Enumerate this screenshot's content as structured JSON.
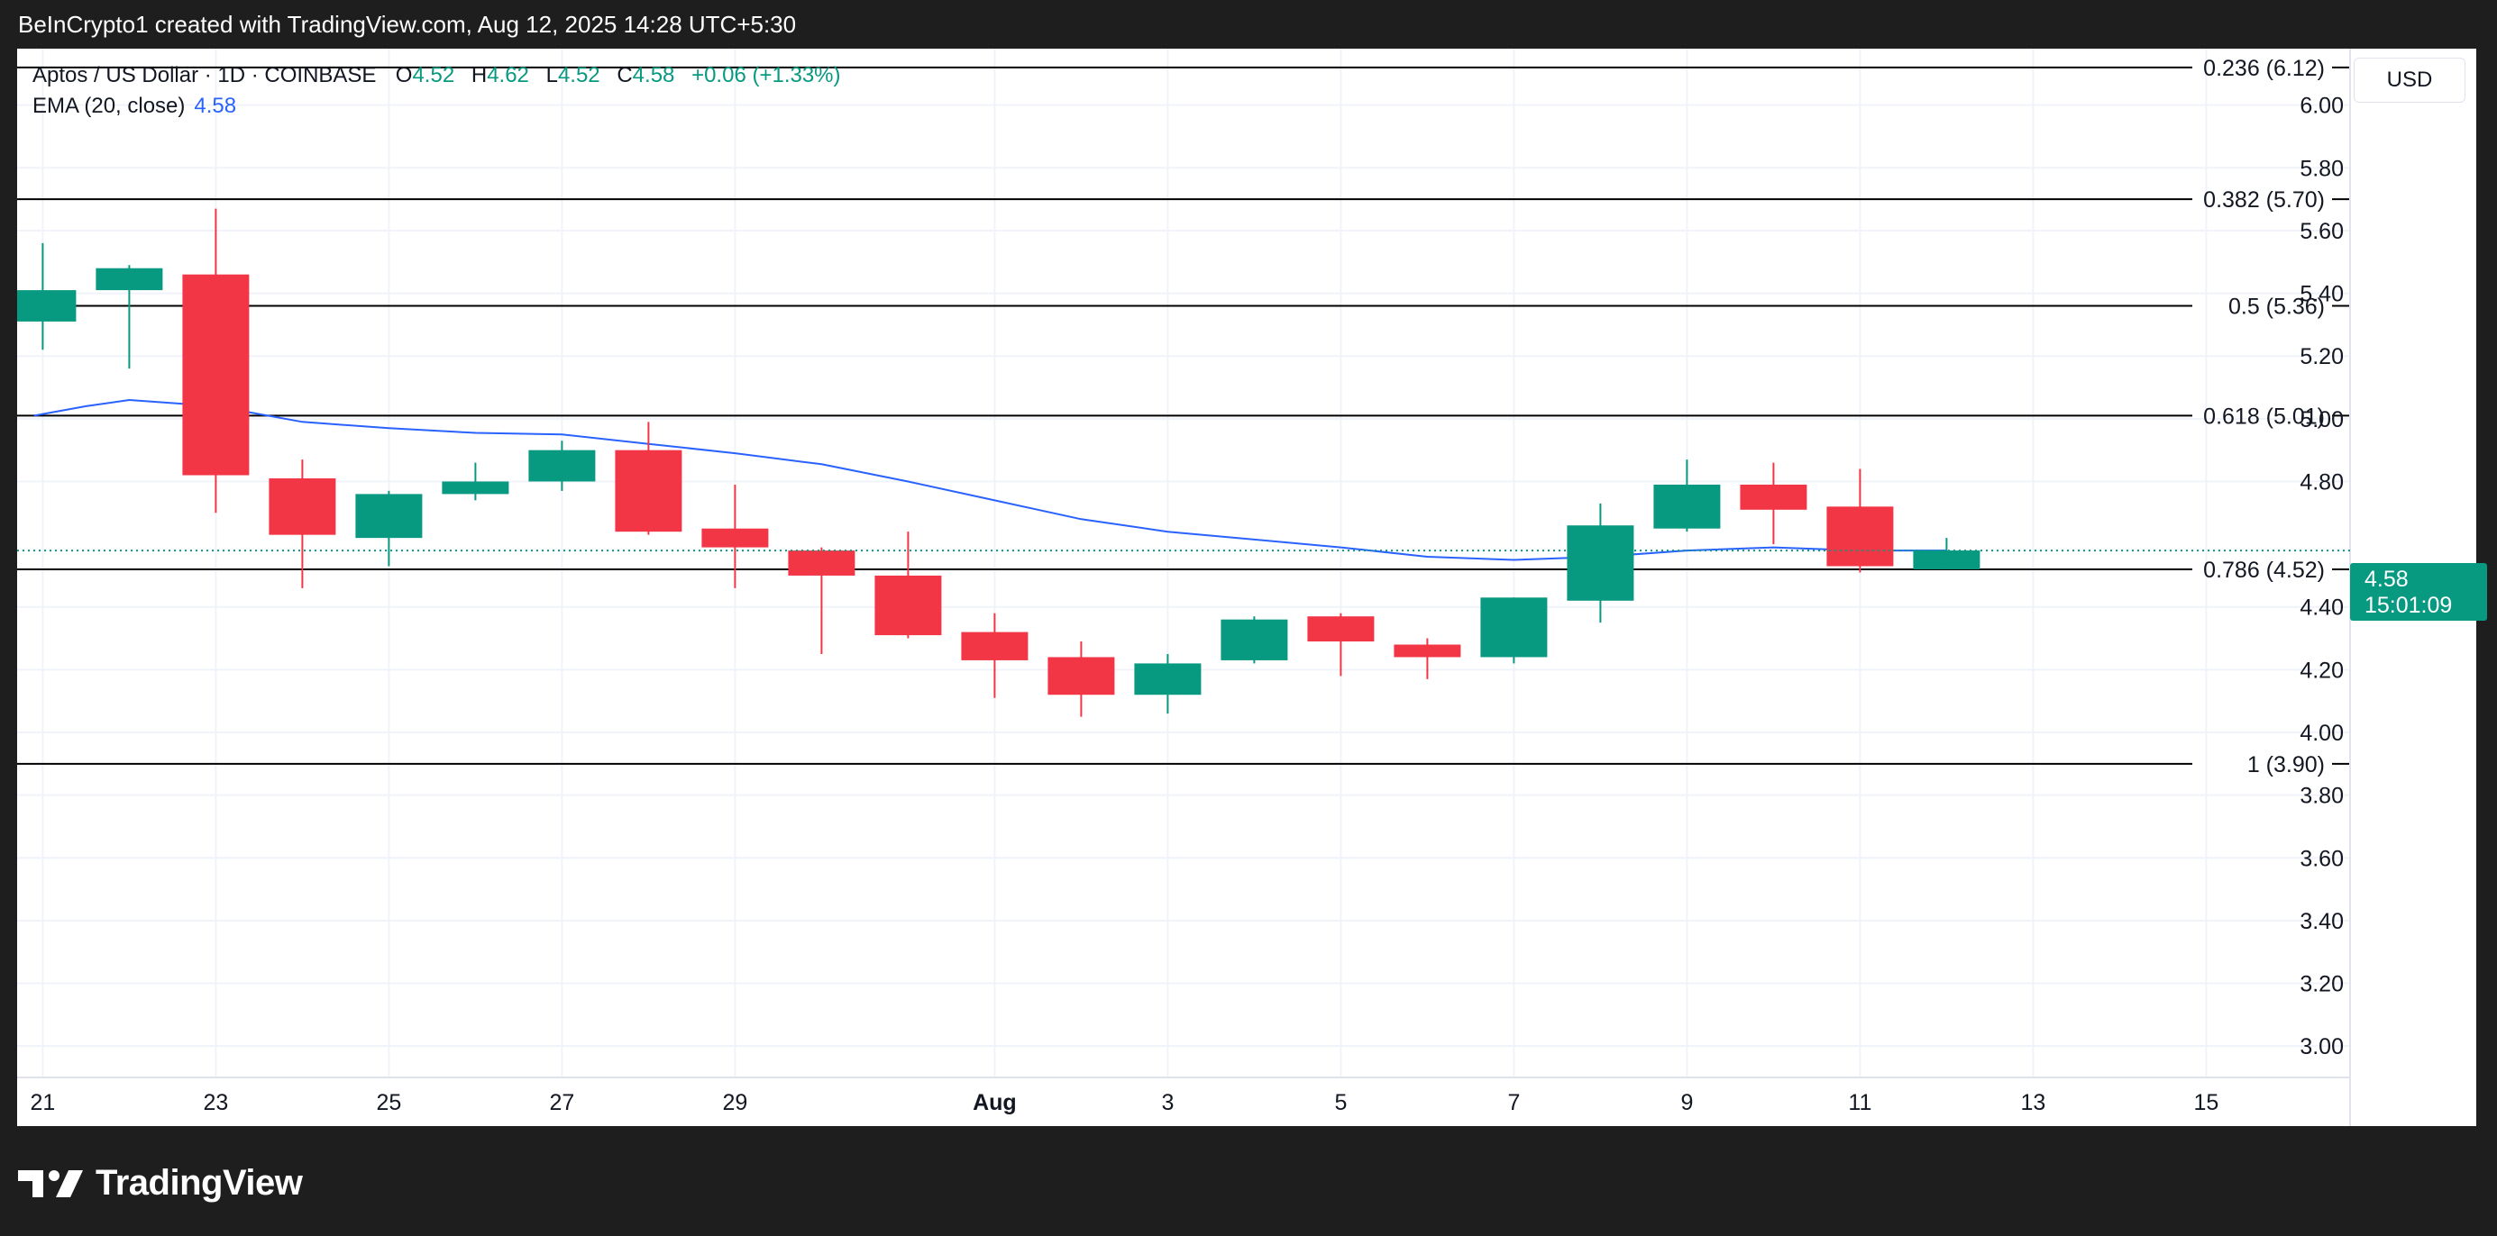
{
  "header": {
    "attribution": "BeInCrypto1 created with TradingView.com, Aug 12, 2025 14:28 UTC+5:30"
  },
  "legend": {
    "title": "Aptos / US Dollar · 1D · COINBASE",
    "open_key": "O",
    "open": "4.52",
    "high_key": "H",
    "high": "4.62",
    "low_key": "L",
    "low": "4.52",
    "close_key": "C",
    "close": "4.58",
    "change": "+0.06 (+1.33%)",
    "ema_label": "EMA (20, close)",
    "ema_value": "4.58"
  },
  "currency": "USD",
  "price_tag": {
    "price": "4.58",
    "countdown": "15:01:09"
  },
  "footer": {
    "brand": "TradingView"
  },
  "colors": {
    "up": "#089981",
    "down": "#f23645",
    "ema": "#2962ff",
    "fib_line": "#000000",
    "grid": "#f0f3fa",
    "text": "#131722"
  },
  "chart_data": {
    "type": "candlestick",
    "symbol": "Aptos / US Dollar",
    "interval": "1D",
    "exchange": "COINBASE",
    "ylim": [
      2.9,
      6.18
    ],
    "y_ticks": [
      "6.00",
      "5.80",
      "5.60",
      "5.40",
      "5.20",
      "5.00",
      "4.80",
      "4.40",
      "4.20",
      "4.00",
      "3.80",
      "3.60",
      "3.40",
      "3.20",
      "3.00"
    ],
    "x_ticks": [
      {
        "label": "21",
        "day": 0
      },
      {
        "label": "23",
        "day": 2
      },
      {
        "label": "25",
        "day": 4
      },
      {
        "label": "27",
        "day": 6
      },
      {
        "label": "29",
        "day": 8
      },
      {
        "label": "Aug",
        "day": 11
      },
      {
        "label": "3",
        "day": 13
      },
      {
        "label": "5",
        "day": 15
      },
      {
        "label": "7",
        "day": 17
      },
      {
        "label": "9",
        "day": 19
      },
      {
        "label": "11",
        "day": 21
      },
      {
        "label": "13",
        "day": 23
      },
      {
        "label": "15",
        "day": 25
      }
    ],
    "x_range_days": [
      -0.15,
      26.1
    ],
    "candles": [
      {
        "date": "Jul 21",
        "open": 5.31,
        "high": 5.56,
        "low": 5.22,
        "close": 5.41
      },
      {
        "date": "Jul 22",
        "open": 5.41,
        "high": 5.49,
        "low": 5.16,
        "close": 5.48
      },
      {
        "date": "Jul 23",
        "open": 5.46,
        "high": 5.67,
        "low": 4.7,
        "close": 4.82
      },
      {
        "date": "Jul 24",
        "open": 4.81,
        "high": 4.87,
        "low": 4.46,
        "close": 4.63
      },
      {
        "date": "Jul 25",
        "open": 4.62,
        "high": 4.77,
        "low": 4.53,
        "close": 4.76
      },
      {
        "date": "Jul 26",
        "open": 4.76,
        "high": 4.86,
        "low": 4.74,
        "close": 4.8
      },
      {
        "date": "Jul 27",
        "open": 4.8,
        "high": 4.93,
        "low": 4.77,
        "close": 4.9
      },
      {
        "date": "Jul 28",
        "open": 4.9,
        "high": 4.99,
        "low": 4.63,
        "close": 4.64
      },
      {
        "date": "Jul 29",
        "open": 4.65,
        "high": 4.79,
        "low": 4.46,
        "close": 4.59
      },
      {
        "date": "Jul 30",
        "open": 4.58,
        "high": 4.59,
        "low": 4.25,
        "close": 4.5
      },
      {
        "date": "Jul 31",
        "open": 4.5,
        "high": 4.64,
        "low": 4.3,
        "close": 4.31
      },
      {
        "date": "Aug 1",
        "open": 4.32,
        "high": 4.38,
        "low": 4.11,
        "close": 4.23
      },
      {
        "date": "Aug 2",
        "open": 4.24,
        "high": 4.29,
        "low": 4.05,
        "close": 4.12
      },
      {
        "date": "Aug 3",
        "open": 4.12,
        "high": 4.25,
        "low": 4.06,
        "close": 4.22
      },
      {
        "date": "Aug 4",
        "open": 4.23,
        "high": 4.37,
        "low": 4.22,
        "close": 4.36
      },
      {
        "date": "Aug 5",
        "open": 4.37,
        "high": 4.38,
        "low": 4.18,
        "close": 4.29
      },
      {
        "date": "Aug 6",
        "open": 4.28,
        "high": 4.3,
        "low": 4.17,
        "close": 4.24
      },
      {
        "date": "Aug 7",
        "open": 4.24,
        "high": 4.43,
        "low": 4.22,
        "close": 4.43
      },
      {
        "date": "Aug 8",
        "open": 4.42,
        "high": 4.73,
        "low": 4.35,
        "close": 4.66
      },
      {
        "date": "Aug 9",
        "open": 4.65,
        "high": 4.87,
        "low": 4.64,
        "close": 4.79
      },
      {
        "date": "Aug 10",
        "open": 4.79,
        "high": 4.86,
        "low": 4.6,
        "close": 4.71
      },
      {
        "date": "Aug 11",
        "open": 4.72,
        "high": 4.84,
        "low": 4.51,
        "close": 4.53
      },
      {
        "date": "Aug 12",
        "open": 4.52,
        "high": 4.62,
        "low": 4.52,
        "close": 4.58
      }
    ],
    "ema": {
      "name": "EMA (20, close)",
      "days": [
        -0.1,
        0.5,
        1.0,
        2.0,
        3.0,
        4.0,
        5.0,
        6.0,
        7.0,
        8.0,
        9.0,
        10.0,
        11.0,
        12.0,
        13.0,
        14.0,
        15.0,
        16.0,
        17.0,
        18.0,
        19.0,
        20.0,
        21.0,
        22.0
      ],
      "values": [
        5.01,
        5.04,
        5.06,
        5.04,
        4.99,
        4.97,
        4.955,
        4.95,
        4.92,
        4.89,
        4.855,
        4.8,
        4.74,
        4.68,
        4.64,
        4.615,
        4.59,
        4.56,
        4.55,
        4.56,
        4.58,
        4.59,
        4.58,
        4.58
      ]
    },
    "fib_levels": [
      {
        "label": "0.236 (6.12)",
        "value": 6.12
      },
      {
        "label": "0.382 (5.70)",
        "value": 5.7
      },
      {
        "label": "0.5 (5.36)",
        "value": 5.36
      },
      {
        "label": "0.618 (5.01)",
        "value": 5.01
      },
      {
        "label": "0.786 (4.52)",
        "value": 4.52
      },
      {
        "label": "1 (3.90)",
        "value": 3.9
      }
    ],
    "last_price": 4.58,
    "grid": true
  }
}
